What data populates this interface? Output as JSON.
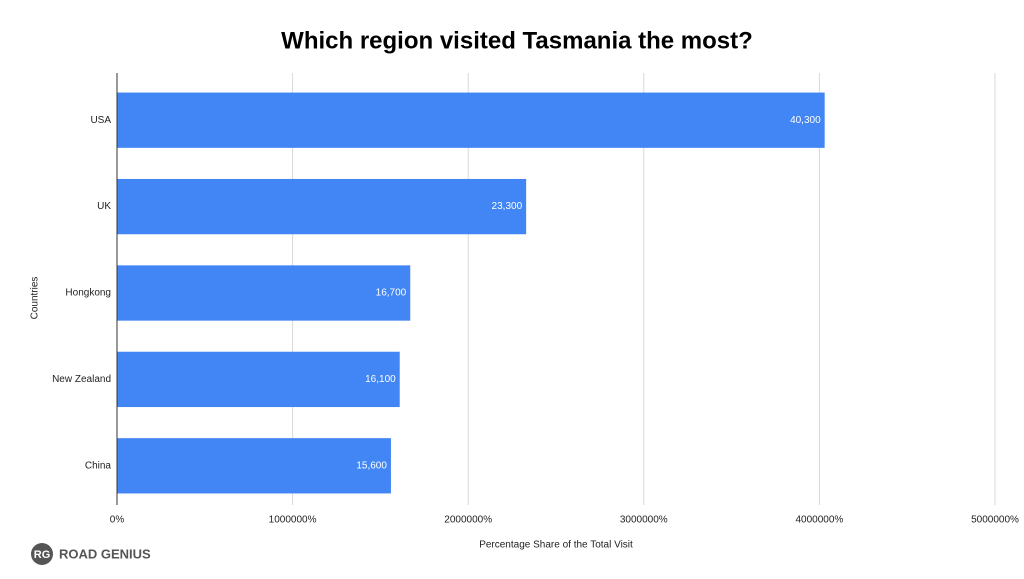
{
  "chart_data": {
    "type": "bar",
    "orientation": "horizontal",
    "title": "Which region visited Tasmania the most?",
    "x_label": "Percentage Share of the Total Visit",
    "y_label": "Countries",
    "categories": [
      "USA",
      "UK",
      "Hongkong",
      "New Zealand",
      "China"
    ],
    "values": [
      40300,
      23300,
      16700,
      16100,
      15600
    ],
    "value_labels": [
      "40,300",
      "23,300",
      "16,700",
      "16,100",
      "15,600"
    ],
    "color": "#4285f4",
    "xlim": [
      0,
      50000
    ],
    "xticks": [
      {
        "value": 0,
        "label": "0%"
      },
      {
        "value": 10000,
        "label": "1000000%"
      },
      {
        "value": 20000,
        "label": "2000000%"
      },
      {
        "value": 30000,
        "label": "3000000%"
      },
      {
        "value": 40000,
        "label": "4000000%"
      },
      {
        "value": 50000,
        "label": "5000000%"
      }
    ],
    "grid": true
  },
  "logo": {
    "badge": "RG",
    "text": "ROAD GENIUS"
  }
}
